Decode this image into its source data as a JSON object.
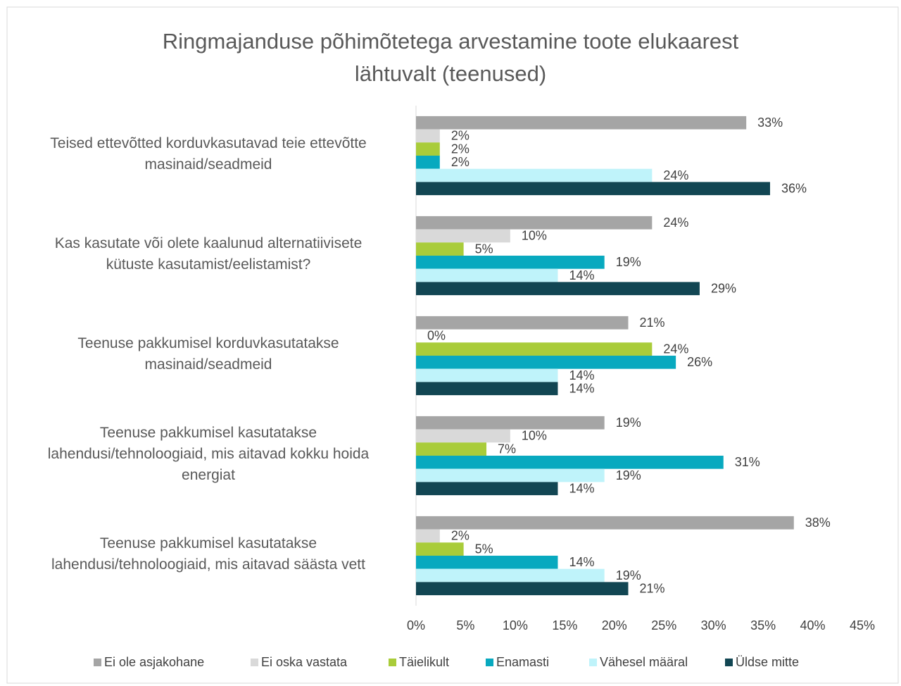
{
  "chart_data": {
    "type": "bar",
    "orientation": "horizontal",
    "title": "Ringmajanduse põhimõtetega arvestamine toote elukaarest\nlähtuvalt (teenused)",
    "categories": [
      "Teised ettevõtted korduvkasutavad teie ettevõtte\nmasinaid/seadmeid",
      "Kas kasutate või olete kaalunud alternatiivisete\nkütuste kasutamist/eelistamist?",
      "Teenuse pakkumisel korduvkasutatakse\nmasinaid/seadmeid",
      "Teenuse pakkumisel kasutatakse\nlahendusi/tehnoloogiaid, mis aitavad kokku hoida\nenergiat",
      "Teenuse pakkumisel kasutatakse\nlahendusi/tehnoloogiaid, mis aitavad säästa vett"
    ],
    "series": [
      {
        "name": "Ei ole asjakohane",
        "color": "#a5a5a5",
        "values": [
          33.3,
          23.8,
          21.4,
          19.0,
          38.1
        ],
        "value_labels": [
          "33%",
          "24%",
          "21%",
          "19%",
          "38%"
        ]
      },
      {
        "name": "Ei oska vastata",
        "color": "#d9d9d9",
        "values": [
          2.4,
          9.5,
          0,
          9.5,
          2.4
        ],
        "value_labels": [
          "2%",
          "10%",
          "0%",
          "10%",
          "2%"
        ]
      },
      {
        "name": "Täielikult",
        "color": "#a9cc3a",
        "values": [
          2.4,
          4.8,
          23.8,
          7.1,
          4.8
        ],
        "value_labels": [
          "2%",
          "5%",
          "24%",
          "7%",
          "5%"
        ]
      },
      {
        "name": "Enamasti",
        "color": "#08a9bf",
        "values": [
          2.4,
          19.0,
          26.2,
          31.0,
          14.3
        ],
        "value_labels": [
          "2%",
          "19%",
          "26%",
          "31%",
          "14%"
        ]
      },
      {
        "name": "Vähesel määral",
        "color": "#bff3fa",
        "values": [
          23.8,
          14.3,
          14.3,
          19.0,
          19.0
        ],
        "value_labels": [
          "24%",
          "14%",
          "14%",
          "19%",
          "19%"
        ]
      },
      {
        "name": "Üldse mitte",
        "color": "#124653",
        "values": [
          35.7,
          28.6,
          14.3,
          14.3,
          21.4
        ],
        "value_labels": [
          "36%",
          "29%",
          "14%",
          "14%",
          "21%"
        ]
      }
    ],
    "xlim": [
      0,
      45
    ],
    "xticks": [
      {
        "value": 0,
        "label": "0%"
      },
      {
        "value": 5,
        "label": "5%"
      },
      {
        "value": 10,
        "label": "10%"
      },
      {
        "value": 15,
        "label": "15%"
      },
      {
        "value": 20,
        "label": "20%"
      },
      {
        "value": 25,
        "label": "25%"
      },
      {
        "value": 30,
        "label": "30%"
      },
      {
        "value": 35,
        "label": "35%"
      },
      {
        "value": 40,
        "label": "40%"
      },
      {
        "value": 45,
        "label": "45%"
      }
    ],
    "grid": false,
    "legend": "bottom"
  }
}
